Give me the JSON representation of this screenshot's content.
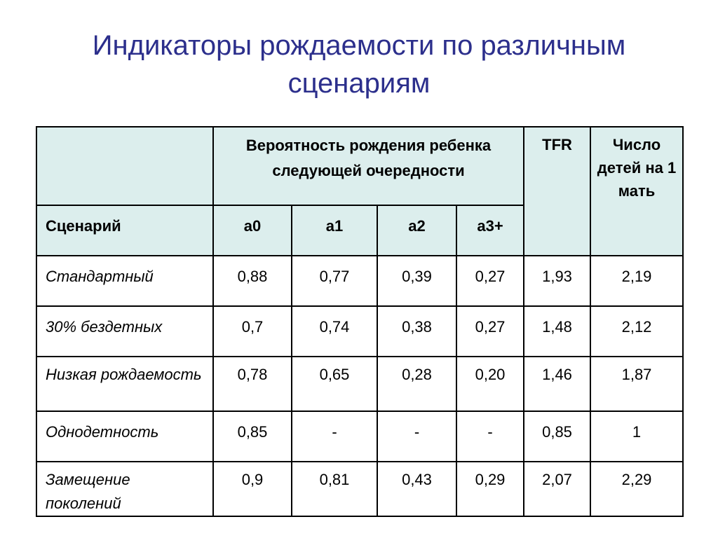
{
  "title": {
    "line1": "Индикаторы рождаемости по различным",
    "line2": "сценариям"
  },
  "table": {
    "header_probability": "Вероятность рождения ребенка следующей очередности",
    "header_tfr": "TFR",
    "header_children": "Число детей на 1 мать",
    "header_scenario": "Сценарий",
    "header_a0": "a0",
    "header_a1": "a1",
    "header_a2": "a2",
    "header_a3": "a3+",
    "rows": [
      {
        "scenario": "Стандартный",
        "a0": "0,88",
        "a1": "0,77",
        "a2": "0,39",
        "a3": "0,27",
        "tfr": "1,93",
        "children": "2,19"
      },
      {
        "scenario": "30% бездетных",
        "a0": "0,7",
        "a1": "0,74",
        "a2": "0,38",
        "a3": "0,27",
        "tfr": "1,48",
        "children": "2,12"
      },
      {
        "scenario": "Низкая рождаемость",
        "a0": "0,78",
        "a1": "0,65",
        "a2": "0,28",
        "a3": "0,20",
        "tfr": "1,46",
        "children": "1,87"
      },
      {
        "scenario": "Однодетность",
        "a0": "0,85",
        "a1": "-",
        "a2": "-",
        "a3": "-",
        "tfr": "0,85",
        "children": "1"
      },
      {
        "scenario": "Замещение поколений",
        "a0": "0,9",
        "a1": "0,81",
        "a2": "0,43",
        "a3": "0,29",
        "tfr": "2,07",
        "children": "2,29"
      }
    ]
  }
}
